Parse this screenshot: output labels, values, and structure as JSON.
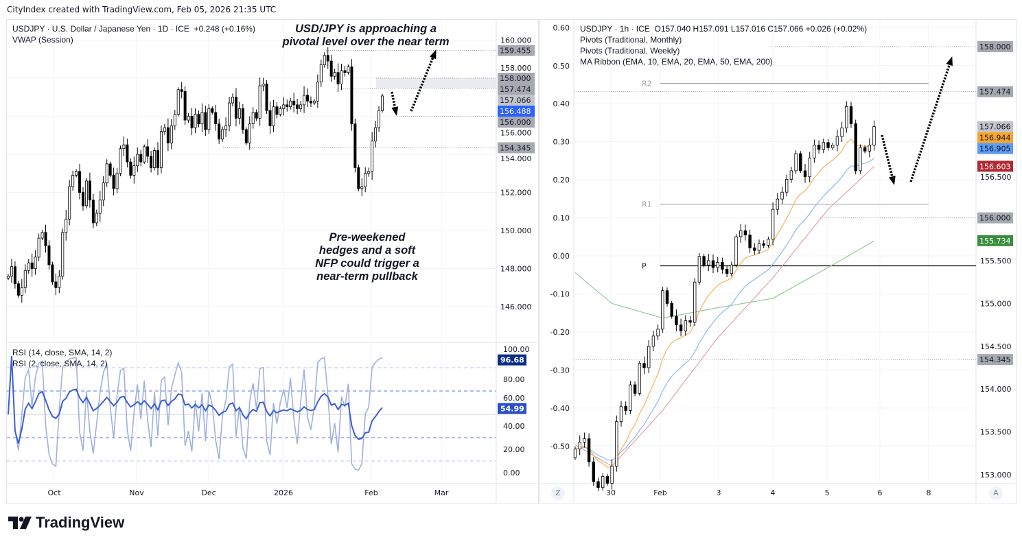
{
  "header": {
    "credit": "CityIndex created with TradingView.com, Feb 05, 2026 21:35 UTC"
  },
  "left_chart": {
    "legend_title": "USDJPY · U.S. Dollar / Japanese Yen · 1D · ICE",
    "legend_change": "+0.248 (+0.16%)",
    "legend_indicator": "VWAP (Session)",
    "annotation_top": [
      "USD/JPY is approaching a",
      "pivotal level over the near term"
    ],
    "annotation_bottom": [
      "Pre-weekened",
      "hedges and a soft",
      "NFP could trigger a",
      "near-term pullback"
    ],
    "rsi_legend": [
      "RSI (14, close, SMA, 14, 2)",
      "RSI (2, close, SMA, 14, 2)"
    ],
    "time_labels": [
      "Oct",
      "Nov",
      "Dec",
      "2026",
      "Feb",
      "Mar"
    ]
  },
  "right_chart": {
    "legend_title": "USDJPY · 1h · ICE",
    "legend_ohlc": "O157.040  H157.091  L157.016  C157.066  +0.026 (+0.02%)",
    "legend_indicators": [
      "Pivots (Traditional, Monthly)",
      "Pivots (Traditional, Weekly)",
      "MA Ribbon (EMA, 10, EMA, 20, EMA, 50, EMA, 200)"
    ],
    "time_labels": [
      "30",
      "Feb",
      "3",
      "4",
      "5",
      "6",
      "8"
    ],
    "scale_buttons": [
      "Z",
      "A"
    ]
  },
  "brand": {
    "logo_text": "TradingView"
  },
  "colors": {
    "up_body": "#ffffff",
    "down_body": "#000000",
    "candle_line": "#000000",
    "rsi14": "#3d5fd1",
    "rsi2": "#9fb0e0",
    "ema10": "#f5b25a",
    "ema20": "#8fb8f0",
    "ema50": "#e0a3a8",
    "ema200": "#96c996",
    "tag_grey": "#a6a9b1",
    "current_blue": "#2962ff"
  },
  "chart_data": [
    {
      "type": "candlestick",
      "title": "USDJPY · U.S. Dollar / Japanese Yen · 1D · ICE",
      "timeframe": "1D",
      "ylim": [
        145,
        160.5
      ],
      "y_ticks": [
        "160.000",
        "158.000",
        "156.000",
        "154.000",
        "152.000",
        "150.000",
        "148.000",
        "146.000"
      ],
      "closes": [
        147.6,
        148.1,
        147.2,
        146.6,
        147.0,
        147.9,
        148.3,
        148.0,
        148.6,
        149.6,
        149.9,
        149.2,
        148.2,
        147.3,
        147.0,
        147.6,
        149.9,
        150.6,
        152.3,
        152.9,
        153.1,
        152.0,
        151.3,
        152.6,
        151.6,
        150.4,
        150.9,
        151.6,
        152.5,
        153.5,
        152.9,
        152.2,
        153.0,
        154.3,
        154.5,
        153.6,
        152.9,
        153.4,
        154.0,
        153.6,
        154.4,
        153.9,
        153.3,
        154.2,
        153.3,
        155.2,
        155.4,
        154.6,
        155.5,
        156.1,
        157.4,
        157.3,
        155.8,
        156.0,
        155.4,
        156.1,
        155.6,
        156.2,
        155.3,
        156.4,
        156.2,
        155.6,
        154.8,
        155.3,
        155.5,
        156.7,
        157.0,
        155.9,
        156.4,
        155.3,
        154.6,
        155.6,
        156.2,
        155.9,
        157.6,
        157.7,
        156.3,
        155.5,
        156.5,
        156.1,
        156.4,
        156.6,
        156.5,
        156.8,
        156.6,
        156.4,
        156.6,
        157.1,
        156.8,
        156.7,
        156.8,
        157.8,
        158.7,
        159.2,
        158.9,
        158.1,
        158.3,
        157.7,
        158.4,
        158.3,
        158.6,
        155.6,
        153.3,
        152.2,
        152.3,
        153.0,
        153.1,
        154.7,
        155.4,
        156.3,
        157.066
      ],
      "levels": [
        {
          "value": 159.455,
          "label": "159.455",
          "style": "dotted"
        },
        {
          "value": 158.0,
          "label": "158.000",
          "style": "zone-top"
        },
        {
          "value": 157.474,
          "label": "157.474",
          "style": "dotted"
        },
        {
          "value": 156.0,
          "label": "156.000",
          "style": "dotted"
        },
        {
          "value": 154.345,
          "label": "154.345",
          "style": "dotted"
        }
      ],
      "price_tags": [
        {
          "value": 159.455,
          "label": "159.455",
          "bg": "#a6a9b1",
          "fg": "#131722"
        },
        {
          "value": 158.0,
          "label": "158.000",
          "bg": "#a6a9b1",
          "fg": "#131722"
        },
        {
          "value": 157.474,
          "label": "157.474",
          "bg": "#a6a9b1",
          "fg": "#131722"
        },
        {
          "value": 157.066,
          "label": "157.066",
          "bg": "#c3c5cc",
          "fg": "#131722"
        },
        {
          "value": 156.488,
          "label": "156.488",
          "bg": "#2962ff",
          "fg": "#ffffff"
        },
        {
          "value": 156.0,
          "label": "156.000",
          "bg": "#a6a9b1",
          "fg": "#131722"
        },
        {
          "value": 154.345,
          "label": "154.345",
          "bg": "#a6a9b1",
          "fg": "#131722"
        }
      ]
    },
    {
      "type": "line",
      "title": "RSI",
      "series": [
        {
          "name": "RSI (14, close, SMA, 14, 2)",
          "last": "54.99"
        },
        {
          "name": "RSI (2, close, SMA, 14, 2)",
          "last": "96.68"
        }
      ],
      "ylim": [
        0,
        100
      ],
      "y_ticks": [
        "100.00",
        "80.00",
        "60.00",
        "40.00",
        "20.00",
        "0.00"
      ],
      "bands": [
        90,
        70,
        50,
        30,
        10
      ],
      "tags": [
        {
          "value": 96.68,
          "label": "96.68",
          "bg": "#0c2d8a"
        },
        {
          "value": 54.99,
          "label": "54.99",
          "bg": "#2b4fc7"
        }
      ]
    },
    {
      "type": "candlestick",
      "title": "USDJPY · 1h · ICE",
      "timeframe": "1h",
      "ylim": [
        152.85,
        158.5
      ],
      "y_ticks": [
        "156.500",
        "155.500",
        "155.000",
        "154.500",
        "154.000",
        "153.500",
        "153.000"
      ],
      "percent_ticks": [
        "0.60",
        "0.50",
        "0.40",
        "0.30",
        "0.20",
        "0.10",
        "0.00",
        "-0.10",
        "-0.20",
        "-0.30",
        "-0.40",
        "-0.50"
      ],
      "closes": [
        153.3,
        153.38,
        153.42,
        153.15,
        152.92,
        152.85,
        152.98,
        152.9,
        153.1,
        153.62,
        153.8,
        153.75,
        154.05,
        153.95,
        154.3,
        154.25,
        154.5,
        154.62,
        154.7,
        155.15,
        155.0,
        154.85,
        154.75,
        154.68,
        154.8,
        154.78,
        155.25,
        155.55,
        155.45,
        155.5,
        155.42,
        155.48,
        155.4,
        155.35,
        155.45,
        155.78,
        155.85,
        155.8,
        155.65,
        155.62,
        155.7,
        155.68,
        155.75,
        156.1,
        156.22,
        156.3,
        156.45,
        156.55,
        156.75,
        156.55,
        156.48,
        156.7,
        156.85,
        156.8,
        156.88,
        156.82,
        156.85,
        156.95,
        157.05,
        157.3,
        157.1,
        156.55,
        156.82,
        156.78,
        156.85,
        157.066
      ],
      "ema50": [
        [
          0,
          153.35
        ],
        [
          8,
          153.1
        ],
        [
          19,
          153.75
        ],
        [
          31,
          154.6
        ],
        [
          43,
          155.3
        ],
        [
          55,
          156.1
        ],
        [
          62,
          156.45
        ],
        [
          65,
          156.6
        ]
      ],
      "ema200": [
        [
          0,
          155.36
        ],
        [
          8,
          155.0
        ],
        [
          19,
          154.83
        ],
        [
          31,
          154.95
        ],
        [
          43,
          155.06
        ],
        [
          55,
          155.42
        ],
        [
          65,
          155.73
        ]
      ],
      "pivots": [
        {
          "label": "R2",
          "value": 157.57
        },
        {
          "label": "R1",
          "value": 156.16
        },
        {
          "label": "P",
          "value": 155.44
        }
      ],
      "levels": [
        {
          "value": 158.0,
          "label": "158.000"
        },
        {
          "value": 157.474,
          "label": "157.474"
        },
        {
          "value": 156.0,
          "label": "156.000"
        },
        {
          "value": 154.345,
          "label": "154.345"
        }
      ],
      "price_tags": [
        {
          "value": 158.0,
          "label": "158.000",
          "bg": "#a6a9b1",
          "fg": "#131722"
        },
        {
          "value": 157.474,
          "label": "157.474",
          "bg": "#a6a9b1",
          "fg": "#131722"
        },
        {
          "value": 157.066,
          "label": "157.066",
          "bg": "#c3c5cc",
          "fg": "#131722"
        },
        {
          "value": 156.944,
          "label": "156.944",
          "bg": "#f7a531",
          "fg": "#131722"
        },
        {
          "value": 156.905,
          "label": "156.905",
          "bg": "#5b9cf6",
          "fg": "#131722"
        },
        {
          "value": 156.603,
          "label": "156.603",
          "bg": "#b22833",
          "fg": "#ffffff"
        },
        {
          "value": 156.0,
          "label": "156.000",
          "bg": "#a6a9b1",
          "fg": "#131722"
        },
        {
          "value": 155.734,
          "label": "155.734",
          "bg": "#388e3c",
          "fg": "#ffffff"
        },
        {
          "value": 154.345,
          "label": "154.345",
          "bg": "#a6a9b1",
          "fg": "#131722"
        }
      ]
    }
  ]
}
